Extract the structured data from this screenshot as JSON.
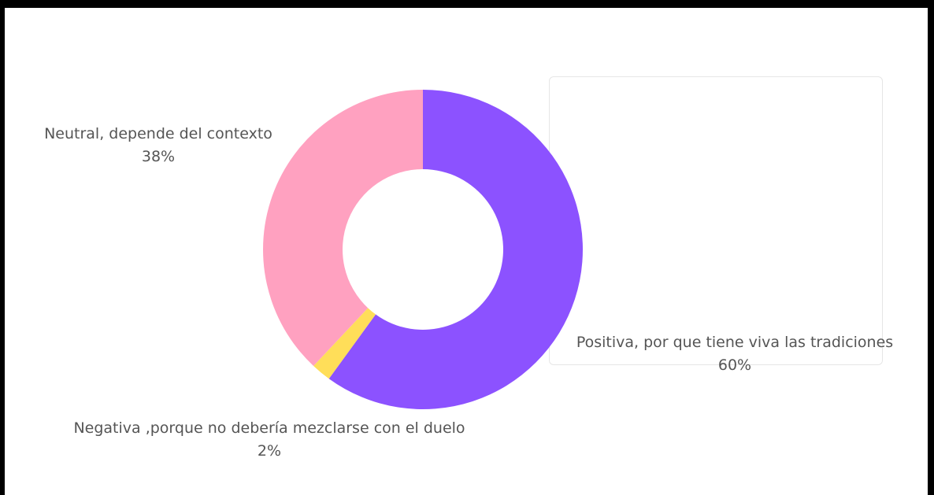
{
  "chart_data": {
    "type": "pie",
    "donut": true,
    "title": "",
    "legend": "none",
    "slices": [
      {
        "label": "Positiva, por que tiene viva las tradiciones",
        "value": 60,
        "value_label": "60%",
        "color": "#8c52ff"
      },
      {
        "label": "Negativa ,porque no debería mezclarse con el duelo",
        "value": 2,
        "value_label": "2%",
        "color": "#ffde59"
      },
      {
        "label": "Neutral, depende del contexto",
        "value": 38,
        "value_label": "38%",
        "color": "#ffa1c0"
      }
    ]
  }
}
